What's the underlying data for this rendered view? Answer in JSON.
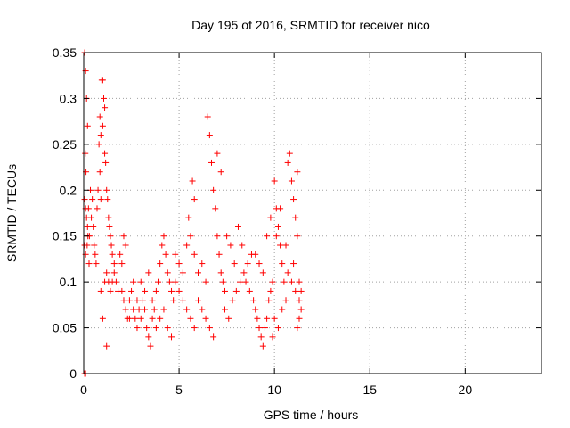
{
  "chart_data": {
    "type": "scatter",
    "title": "Day 195 of 2016, SRMTID for receiver nico",
    "xlabel": "GPS time / hours",
    "ylabel": "SRMTID / TECUs",
    "xlim": [
      0,
      24
    ],
    "ylim": [
      0,
      0.35
    ],
    "xticks": [
      "0",
      "5",
      "10",
      "15",
      "20"
    ],
    "yticks": [
      "0",
      "0.05",
      "0.1",
      "0.15",
      "0.2",
      "0.25",
      "0.3",
      "0.35"
    ],
    "grid": true,
    "marker": "plus",
    "color": "#ff0000",
    "series": [
      {
        "points": [
          [
            0.05,
            0.35
          ],
          [
            0.1,
            0.33
          ],
          [
            0.15,
            0.3
          ],
          [
            0.2,
            0.27
          ],
          [
            0.08,
            0.24
          ],
          [
            0.12,
            0.22
          ],
          [
            0.05,
            0.19
          ],
          [
            0.1,
            0.18
          ],
          [
            0.15,
            0.17
          ],
          [
            0.2,
            0.16
          ],
          [
            0.25,
            0.18
          ],
          [
            0.3,
            0.15
          ],
          [
            0.05,
            0.14
          ],
          [
            0.1,
            0.13
          ],
          [
            0.18,
            0.14
          ],
          [
            0.22,
            0.15
          ],
          [
            0.28,
            0.12
          ],
          [
            0.05,
            0.0
          ],
          [
            0.1,
            0.0
          ],
          [
            0.35,
            0.2
          ],
          [
            0.4,
            0.17
          ],
          [
            0.45,
            0.19
          ],
          [
            0.5,
            0.16
          ],
          [
            0.55,
            0.14
          ],
          [
            0.6,
            0.13
          ],
          [
            0.65,
            0.12
          ],
          [
            0.7,
            0.18
          ],
          [
            0.75,
            0.2
          ],
          [
            0.8,
            0.25
          ],
          [
            0.85,
            0.22
          ],
          [
            0.9,
            0.19
          ],
          [
            0.95,
            0.32
          ],
          [
            1.0,
            0.32
          ],
          [
            1.05,
            0.3
          ],
          [
            1.1,
            0.29
          ],
          [
            1.0,
            0.27
          ],
          [
            0.9,
            0.26
          ],
          [
            0.85,
            0.28
          ],
          [
            1.1,
            0.24
          ],
          [
            1.15,
            0.23
          ],
          [
            1.2,
            0.2
          ],
          [
            1.25,
            0.19
          ],
          [
            1.3,
            0.17
          ],
          [
            1.35,
            0.16
          ],
          [
            1.4,
            0.15
          ],
          [
            1.45,
            0.14
          ],
          [
            1.5,
            0.13
          ],
          [
            1.2,
            0.11
          ],
          [
            1.3,
            0.1
          ],
          [
            1.4,
            0.09
          ],
          [
            1.5,
            0.1
          ],
          [
            1.6,
            0.12
          ],
          [
            1.0,
            0.06
          ],
          [
            1.2,
            0.03
          ],
          [
            0.9,
            0.09
          ],
          [
            1.1,
            0.1
          ],
          [
            1.6,
            0.11
          ],
          [
            1.7,
            0.1
          ],
          [
            1.8,
            0.09
          ],
          [
            1.9,
            0.13
          ],
          [
            2.0,
            0.12
          ],
          [
            2.1,
            0.15
          ],
          [
            2.2,
            0.14
          ],
          [
            2.0,
            0.09
          ],
          [
            2.1,
            0.08
          ],
          [
            2.2,
            0.07
          ],
          [
            2.3,
            0.06
          ],
          [
            2.4,
            0.08
          ],
          [
            2.5,
            0.09
          ],
          [
            2.6,
            0.07
          ],
          [
            2.7,
            0.06
          ],
          [
            2.8,
            0.05
          ],
          [
            2.9,
            0.07
          ],
          [
            3.0,
            0.06
          ],
          [
            3.1,
            0.08
          ],
          [
            3.2,
            0.07
          ],
          [
            3.3,
            0.05
          ],
          [
            3.4,
            0.04
          ],
          [
            3.5,
            0.03
          ],
          [
            3.6,
            0.06
          ],
          [
            3.7,
            0.07
          ],
          [
            3.8,
            0.09
          ],
          [
            3.9,
            0.1
          ],
          [
            4.0,
            0.12
          ],
          [
            4.1,
            0.14
          ],
          [
            4.2,
            0.15
          ],
          [
            4.3,
            0.13
          ],
          [
            4.4,
            0.11
          ],
          [
            4.5,
            0.1
          ],
          [
            4.6,
            0.09
          ],
          [
            4.7,
            0.08
          ],
          [
            4.8,
            0.1
          ],
          [
            3.0,
            0.1
          ],
          [
            3.2,
            0.09
          ],
          [
            3.4,
            0.11
          ],
          [
            3.6,
            0.08
          ],
          [
            2.8,
            0.08
          ],
          [
            2.6,
            0.1
          ],
          [
            2.4,
            0.06
          ],
          [
            3.8,
            0.05
          ],
          [
            4.0,
            0.06
          ],
          [
            4.2,
            0.07
          ],
          [
            4.4,
            0.05
          ],
          [
            4.6,
            0.04
          ],
          [
            4.8,
            0.13
          ],
          [
            5.0,
            0.12
          ],
          [
            5.2,
            0.11
          ],
          [
            5.4,
            0.14
          ],
          [
            5.6,
            0.15
          ],
          [
            5.8,
            0.13
          ],
          [
            5.0,
            0.09
          ],
          [
            5.2,
            0.08
          ],
          [
            5.4,
            0.07
          ],
          [
            5.6,
            0.06
          ],
          [
            5.8,
            0.05
          ],
          [
            6.0,
            0.11
          ],
          [
            6.2,
            0.12
          ],
          [
            6.4,
            0.1
          ],
          [
            6.5,
            0.28
          ],
          [
            6.6,
            0.26
          ],
          [
            6.7,
            0.23
          ],
          [
            6.8,
            0.2
          ],
          [
            6.9,
            0.18
          ],
          [
            7.0,
            0.15
          ],
          [
            7.1,
            0.13
          ],
          [
            7.2,
            0.11
          ],
          [
            7.3,
            0.1
          ],
          [
            7.4,
            0.09
          ],
          [
            5.7,
            0.21
          ],
          [
            5.8,
            0.19
          ],
          [
            5.5,
            0.17
          ],
          [
            6.0,
            0.08
          ],
          [
            6.2,
            0.07
          ],
          [
            6.4,
            0.06
          ],
          [
            6.6,
            0.05
          ],
          [
            6.8,
            0.04
          ],
          [
            7.0,
            0.24
          ],
          [
            7.2,
            0.22
          ],
          [
            7.4,
            0.07
          ],
          [
            7.6,
            0.06
          ],
          [
            7.8,
            0.08
          ],
          [
            8.0,
            0.09
          ],
          [
            8.2,
            0.1
          ],
          [
            8.4,
            0.11
          ],
          [
            8.6,
            0.12
          ],
          [
            8.8,
            0.13
          ],
          [
            7.5,
            0.15
          ],
          [
            7.7,
            0.14
          ],
          [
            7.9,
            0.12
          ],
          [
            8.1,
            0.16
          ],
          [
            8.3,
            0.14
          ],
          [
            8.5,
            0.1
          ],
          [
            8.7,
            0.09
          ],
          [
            8.9,
            0.08
          ],
          [
            9.0,
            0.07
          ],
          [
            9.1,
            0.06
          ],
          [
            9.2,
            0.05
          ],
          [
            9.3,
            0.04
          ],
          [
            9.4,
            0.03
          ],
          [
            9.5,
            0.05
          ],
          [
            9.6,
            0.06
          ],
          [
            9.7,
            0.08
          ],
          [
            9.8,
            0.09
          ],
          [
            9.9,
            0.1
          ],
          [
            9.0,
            0.13
          ],
          [
            9.2,
            0.12
          ],
          [
            9.4,
            0.11
          ],
          [
            9.6,
            0.15
          ],
          [
            9.8,
            0.17
          ],
          [
            10.0,
            0.21
          ],
          [
            10.1,
            0.18
          ],
          [
            10.2,
            0.16
          ],
          [
            10.3,
            0.14
          ],
          [
            10.4,
            0.12
          ],
          [
            10.5,
            0.1
          ],
          [
            10.6,
            0.08
          ],
          [
            10.7,
            0.23
          ],
          [
            10.8,
            0.24
          ],
          [
            10.9,
            0.21
          ],
          [
            11.0,
            0.19
          ],
          [
            11.1,
            0.17
          ],
          [
            11.2,
            0.15
          ],
          [
            10.7,
            0.11
          ],
          [
            10.9,
            0.1
          ],
          [
            11.1,
            0.09
          ],
          [
            11.3,
            0.08
          ],
          [
            11.4,
            0.07
          ],
          [
            11.3,
            0.06
          ],
          [
            11.2,
            0.05
          ],
          [
            11.3,
            0.1
          ],
          [
            11.4,
            0.09
          ],
          [
            11.0,
            0.12
          ],
          [
            10.0,
            0.06
          ],
          [
            10.2,
            0.05
          ],
          [
            10.4,
            0.07
          ],
          [
            9.9,
            0.04
          ],
          [
            10.6,
            0.14
          ],
          [
            10.3,
            0.18
          ],
          [
            10.1,
            0.15
          ],
          [
            11.2,
            0.22
          ]
        ]
      }
    ]
  }
}
